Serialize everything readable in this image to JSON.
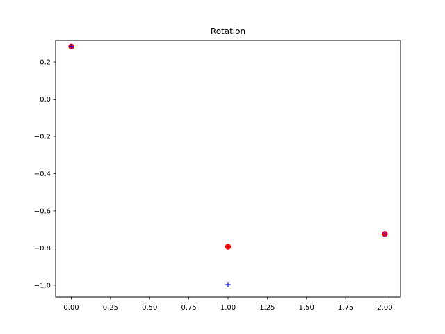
{
  "chart_data": {
    "type": "scatter",
    "title": "Rotation",
    "xlabel": "",
    "ylabel": "",
    "xlim": [
      -0.1,
      2.1
    ],
    "ylim": [
      -1.064,
      0.316
    ],
    "xticks": [
      0.0,
      0.25,
      0.5,
      0.75,
      1.0,
      1.25,
      1.5,
      1.75,
      2.0
    ],
    "xtick_labels": [
      "0.00",
      "0.25",
      "0.50",
      "0.75",
      "1.00",
      "1.25",
      "1.50",
      "1.75",
      "2.00"
    ],
    "yticks": [
      -1.0,
      -0.8,
      -0.6,
      -0.4,
      -0.2,
      0.0,
      0.2
    ],
    "ytick_labels": [
      "−1.0",
      "−0.8",
      "−0.6",
      "−0.4",
      "−0.2",
      "0.0",
      "0.2"
    ],
    "grid": false,
    "series": [
      {
        "marker": "circle",
        "color": "#ff0000",
        "x": [
          0,
          1,
          2
        ],
        "y": [
          0.283,
          -0.793,
          -0.725
        ]
      },
      {
        "marker": "plus",
        "color": "#0000ff",
        "x": [
          0,
          1,
          2
        ],
        "y": [
          0.283,
          -0.997,
          -0.725
        ]
      }
    ]
  }
}
